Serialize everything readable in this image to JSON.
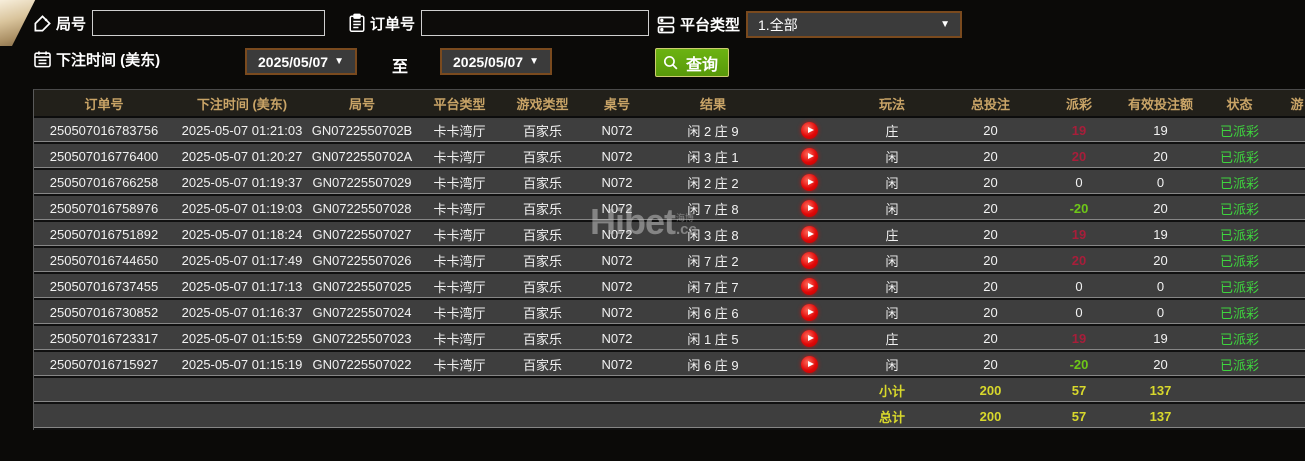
{
  "filters": {
    "round_label": "局号",
    "round_value": "",
    "order_label": "订单号",
    "order_value": "",
    "platform_label": "平台类型",
    "platform_value": "1.全部",
    "dropdown_arrow": "▼",
    "time_label": "下注时间 (美东)",
    "date_from": "2025/05/07",
    "to_label": "至",
    "date_to": "2025/05/07",
    "search_label": "查询"
  },
  "watermark": {
    "brand": "Hibet",
    "tag": "海博",
    "suffix": ".cc"
  },
  "colors": {
    "header_gold": "#c9a467",
    "payout_positive_red": "#a81e3a",
    "payout_negative_green": "#6ec718",
    "status_green": "#3ed43e",
    "totals_yellow": "#d8d82c",
    "search_button_green": "#61a50c",
    "select_border_brown": "#7a4a1e",
    "row_gray": "#3e3e3e"
  },
  "table": {
    "columns": [
      {
        "key": "order",
        "label": "订单号"
      },
      {
        "key": "time",
        "label": "下注时间 (美东)"
      },
      {
        "key": "round",
        "label": "局号"
      },
      {
        "key": "platform",
        "label": "平台类型"
      },
      {
        "key": "game",
        "label": "游戏类型"
      },
      {
        "key": "tableNo",
        "label": "桌号"
      },
      {
        "key": "result",
        "label": "结果"
      },
      {
        "key": "video",
        "label": ""
      },
      {
        "key": "play",
        "label": "玩法"
      },
      {
        "key": "bet",
        "label": "总投注"
      },
      {
        "key": "payout",
        "label": "派彩"
      },
      {
        "key": "valid",
        "label": "有效投注额"
      },
      {
        "key": "status",
        "label": "状态"
      },
      {
        "key": "extra",
        "label": "游"
      }
    ],
    "rows": [
      {
        "order": "250507016783756",
        "time": "2025-05-07 01:21:03",
        "round": "GN0722550702B",
        "platform": "卡卡湾厅",
        "game": "百家乐",
        "tableNo": "N072",
        "result": "闲 2 庄 9",
        "play": "庄",
        "bet": "20",
        "payout": "19",
        "valid": "19",
        "status": "已派彩"
      },
      {
        "order": "250507016776400",
        "time": "2025-05-07 01:20:27",
        "round": "GN0722550702A",
        "platform": "卡卡湾厅",
        "game": "百家乐",
        "tableNo": "N072",
        "result": "闲 3 庄 1",
        "play": "闲",
        "bet": "20",
        "payout": "20",
        "valid": "20",
        "status": "已派彩"
      },
      {
        "order": "250507016766258",
        "time": "2025-05-07 01:19:37",
        "round": "GN07225507029",
        "platform": "卡卡湾厅",
        "game": "百家乐",
        "tableNo": "N072",
        "result": "闲 2 庄 2",
        "play": "闲",
        "bet": "20",
        "payout": "0",
        "valid": "0",
        "status": "已派彩"
      },
      {
        "order": "250507016758976",
        "time": "2025-05-07 01:19:03",
        "round": "GN07225507028",
        "platform": "卡卡湾厅",
        "game": "百家乐",
        "tableNo": "N072",
        "result": "闲 7 庄 8",
        "play": "闲",
        "bet": "20",
        "payout": "-20",
        "valid": "20",
        "status": "已派彩"
      },
      {
        "order": "250507016751892",
        "time": "2025-05-07 01:18:24",
        "round": "GN07225507027",
        "platform": "卡卡湾厅",
        "game": "百家乐",
        "tableNo": "N072",
        "result": "闲 3 庄 8",
        "play": "庄",
        "bet": "20",
        "payout": "19",
        "valid": "19",
        "status": "已派彩"
      },
      {
        "order": "250507016744650",
        "time": "2025-05-07 01:17:49",
        "round": "GN07225507026",
        "platform": "卡卡湾厅",
        "game": "百家乐",
        "tableNo": "N072",
        "result": "闲 7 庄 2",
        "play": "闲",
        "bet": "20",
        "payout": "20",
        "valid": "20",
        "status": "已派彩"
      },
      {
        "order": "250507016737455",
        "time": "2025-05-07 01:17:13",
        "round": "GN07225507025",
        "platform": "卡卡湾厅",
        "game": "百家乐",
        "tableNo": "N072",
        "result": "闲 7 庄 7",
        "play": "闲",
        "bet": "20",
        "payout": "0",
        "valid": "0",
        "status": "已派彩"
      },
      {
        "order": "250507016730852",
        "time": "2025-05-07 01:16:37",
        "round": "GN07225507024",
        "platform": "卡卡湾厅",
        "game": "百家乐",
        "tableNo": "N072",
        "result": "闲 6 庄 6",
        "play": "闲",
        "bet": "20",
        "payout": "0",
        "valid": "0",
        "status": "已派彩"
      },
      {
        "order": "250507016723317",
        "time": "2025-05-07 01:15:59",
        "round": "GN07225507023",
        "platform": "卡卡湾厅",
        "game": "百家乐",
        "tableNo": "N072",
        "result": "闲 1 庄 5",
        "play": "庄",
        "bet": "20",
        "payout": "19",
        "valid": "19",
        "status": "已派彩"
      },
      {
        "order": "250507016715927",
        "time": "2025-05-07 01:15:19",
        "round": "GN07225507022",
        "platform": "卡卡湾厅",
        "game": "百家乐",
        "tableNo": "N072",
        "result": "闲 6 庄 9",
        "play": "闲",
        "bet": "20",
        "payout": "-20",
        "valid": "20",
        "status": "已派彩"
      }
    ],
    "subtotal": {
      "play": "小计",
      "bet": "200",
      "payout": "57",
      "valid": "137"
    },
    "total": {
      "play": "总计",
      "bet": "200",
      "payout": "57",
      "valid": "137"
    }
  }
}
